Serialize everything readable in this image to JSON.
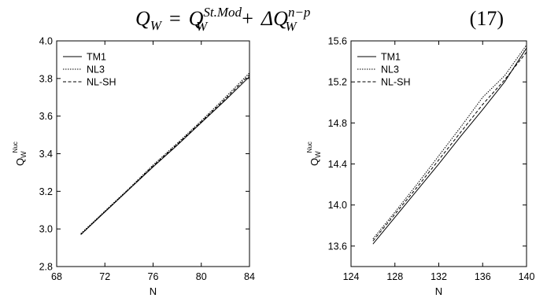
{
  "equation": {
    "lhs_symbol": "Q",
    "lhs_sub": "W",
    "equals": "=",
    "t1_symbol": "Q",
    "t1_sub": "W",
    "t1_sup": "St.Mod",
    "plus": "+",
    "t2_symbol": "ΔQ",
    "t2_sub": "W",
    "t2_sup": "n−p",
    "number": "(17)"
  },
  "chart_data": [
    {
      "type": "line",
      "title": "",
      "xlabel": "N",
      "ylabel_main": "Q",
      "ylabel_sub": "W",
      "ylabel_sup": "Nuc",
      "xlim": [
        68,
        84
      ],
      "ylim": [
        2.8,
        4.0
      ],
      "xticks": [
        "68",
        "72",
        "76",
        "80",
        "84"
      ],
      "yticks": [
        "2.8",
        "3.0",
        "3.2",
        "3.4",
        "3.6",
        "3.8",
        "4.0"
      ],
      "legend_position": "top-left",
      "series": [
        {
          "name": "TM1",
          "dash": "solid",
          "x": [
            70,
            72,
            74,
            76,
            78,
            80,
            82,
            84
          ],
          "y": [
            2.97,
            3.09,
            3.21,
            3.33,
            3.445,
            3.565,
            3.685,
            3.81
          ]
        },
        {
          "name": "NL3",
          "dash": "dotted",
          "x": [
            70,
            72,
            74,
            76,
            78,
            80,
            82,
            84
          ],
          "y": [
            2.975,
            3.095,
            3.215,
            3.34,
            3.455,
            3.575,
            3.7,
            3.83
          ]
        },
        {
          "name": "NL-SH",
          "dash": "dashed",
          "x": [
            70,
            72,
            74,
            76,
            78,
            80,
            82,
            84
          ],
          "y": [
            2.97,
            3.092,
            3.212,
            3.335,
            3.45,
            3.57,
            3.692,
            3.82
          ]
        }
      ]
    },
    {
      "type": "line",
      "title": "",
      "xlabel": "N",
      "ylabel_main": "Q",
      "ylabel_sub": "W",
      "ylabel_sup": "Nuc",
      "xlim": [
        124,
        140
      ],
      "ylim": [
        13.4,
        15.6
      ],
      "xticks": [
        "124",
        "128",
        "132",
        "136",
        "140"
      ],
      "yticks": [
        "13.6",
        "14.0",
        "14.4",
        "14.8",
        "15.2",
        "15.6"
      ],
      "legend_position": "top-left",
      "series": [
        {
          "name": "TM1",
          "dash": "solid",
          "x": [
            126,
            128,
            130,
            132,
            134,
            136,
            138,
            140
          ],
          "y": [
            13.62,
            13.88,
            14.14,
            14.4,
            14.67,
            14.93,
            15.2,
            15.53
          ]
        },
        {
          "name": "NL3",
          "dash": "dotted",
          "x": [
            126,
            128,
            130,
            132,
            134,
            136,
            138,
            140
          ],
          "y": [
            13.67,
            13.93,
            14.2,
            14.48,
            14.76,
            15.05,
            15.26,
            15.56
          ]
        },
        {
          "name": "NL-SH",
          "dash": "dashed",
          "x": [
            126,
            128,
            130,
            132,
            134,
            136,
            138,
            140
          ],
          "y": [
            13.65,
            13.91,
            14.17,
            14.44,
            14.71,
            14.98,
            15.22,
            15.49
          ]
        }
      ]
    }
  ]
}
